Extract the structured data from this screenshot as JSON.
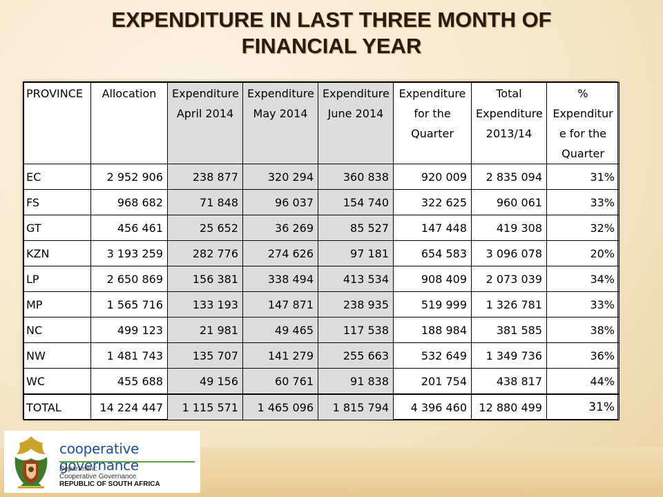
{
  "title": {
    "line1": "EXPENDITURE IN LAST THREE MONTH OF",
    "line2": "FINANCIAL YEAR"
  },
  "table": {
    "headers": [
      [
        "PROVINCE"
      ],
      [
        "Allocation"
      ],
      [
        "Expenditure",
        "April 2014"
      ],
      [
        "Expenditure",
        "May 2014"
      ],
      [
        "Expenditure",
        "June 2014"
      ],
      [
        "Expenditure",
        "for the",
        "Quarter"
      ],
      [
        "Total",
        "Expenditure",
        "2013/14"
      ],
      [
        "%",
        "Expenditur",
        "e for the",
        "Quarter"
      ]
    ],
    "rows": [
      [
        "EC",
        "2 952 906",
        "238 877",
        "320 294",
        "360 838",
        "920 009",
        "2 835 094",
        "31%"
      ],
      [
        "FS",
        "968 682",
        "71 848",
        "96 037",
        "154 740",
        "322 625",
        "960 061",
        "33%"
      ],
      [
        "GT",
        "456 461",
        "25 652",
        "36 269",
        "85 527",
        "147 448",
        "419 308",
        "32%"
      ],
      [
        "KZN",
        "3 193 259",
        "282 776",
        "274 626",
        "97 181",
        "654 583",
        "3 096 078",
        "20%"
      ],
      [
        "LP",
        "2 650 869",
        "156 381",
        "338 494",
        "413 534",
        "908 409",
        "2 073 039",
        "34%"
      ],
      [
        "MP",
        "1 565 716",
        "133 193",
        "147 871",
        "238 935",
        "519 999",
        "1 326 781",
        "33%"
      ],
      [
        "NC",
        "499 123",
        "21 981",
        "49 465",
        "117 538",
        "188 984",
        "381 585",
        "38%"
      ],
      [
        "NW",
        "1 481 743",
        "135 707",
        "141 279",
        "255 663",
        "532 649",
        "1 349 736",
        "36%"
      ],
      [
        "WC",
        "455 688",
        "49 156",
        "60 761",
        "91 838",
        "201 754",
        "438 817",
        "44%"
      ]
    ],
    "total": [
      "TOTAL",
      "14 224 447",
      "1 115 571",
      "1 465 096",
      "1 815 794",
      "4 396 460",
      "12 880 499",
      "31%"
    ]
  },
  "logo": {
    "brand": "cooperative governance",
    "dept_line1": "Department:",
    "dept_line2": "Cooperative Governance",
    "dept_line3": "REPUBLIC OF SOUTH AFRICA"
  },
  "colors": {
    "title": "#2b1a10",
    "shaded_column": "#dcdcdc",
    "brand_blue": "#1b4f98",
    "brand_green": "#5aa43a"
  }
}
